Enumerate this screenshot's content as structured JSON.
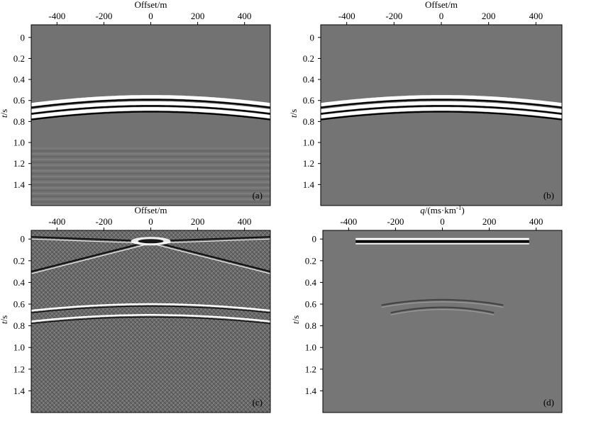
{
  "chart_data": [
    {
      "type": "heatmap",
      "panel_label": "(a)",
      "xlabel": "Offset/m",
      "ylabel_italic": "t",
      "ylabel_unit": "/s",
      "x_ticks": [
        "-400",
        "-200",
        "0",
        "200",
        "400"
      ],
      "x_tick_values": [
        -400,
        -200,
        0,
        200,
        400
      ],
      "y_ticks": [
        "0",
        "0.2",
        "0.4",
        "0.6",
        "0.8",
        "1.0",
        "1.2",
        "1.4"
      ],
      "y_tick_values": [
        0,
        0.2,
        0.4,
        0.6,
        0.8,
        1.0,
        1.2,
        1.4
      ],
      "xlim": [
        -510,
        510
      ],
      "ylim": [
        -0.12,
        1.6
      ],
      "grayscale": true,
      "events": [
        {
          "kind": "hyperbola",
          "t0": 0.565,
          "t_edge": 0.64
        },
        {
          "kind": "hyperbola",
          "t0": 0.625,
          "t_edge": 0.7
        },
        {
          "kind": "hyperbola",
          "t0": 0.68,
          "t_edge": 0.755
        }
      ],
      "background_noise": "horizontal banding below 1.0 s"
    },
    {
      "type": "heatmap",
      "panel_label": "(b)",
      "xlabel": "Offset/m",
      "ylabel_italic": "t",
      "ylabel_unit": "/s",
      "x_ticks": [
        "-400",
        "-200",
        "0",
        "200",
        "400"
      ],
      "x_tick_values": [
        -400,
        -200,
        0,
        200,
        400
      ],
      "y_ticks": [
        "0",
        "0.2",
        "0.4",
        "0.6",
        "0.8",
        "1.0",
        "1.2",
        "1.4"
      ],
      "y_tick_values": [
        0,
        0.2,
        0.4,
        0.6,
        0.8,
        1.0,
        1.2,
        1.4
      ],
      "xlim": [
        -510,
        510
      ],
      "ylim": [
        -0.12,
        1.6
      ],
      "grayscale": true,
      "events": [
        {
          "kind": "hyperbola",
          "t0": 0.565,
          "t_edge": 0.64
        },
        {
          "kind": "hyperbola",
          "t0": 0.625,
          "t_edge": 0.7
        },
        {
          "kind": "hyperbola",
          "t0": 0.68,
          "t_edge": 0.755
        }
      ],
      "background_noise": "clean"
    },
    {
      "type": "heatmap",
      "panel_label": "(c)",
      "xlabel": "Offset/m",
      "ylabel_italic": "t",
      "ylabel_unit": "/s",
      "x_ticks": [
        "-400",
        "-200",
        "0",
        "200",
        "400"
      ],
      "x_tick_values": [
        -400,
        -200,
        0,
        200,
        400
      ],
      "y_ticks": [
        "0",
        "0.2",
        "0.4",
        "0.6",
        "0.8",
        "1.0",
        "1.2",
        "1.4"
      ],
      "y_tick_values": [
        0,
        0.2,
        0.4,
        0.6,
        0.8,
        1.0,
        1.2,
        1.4
      ],
      "xlim": [
        -510,
        510
      ],
      "ylim": [
        -0.08,
        1.6
      ],
      "grayscale": true,
      "events": [
        {
          "kind": "linear",
          "t_at_zero": 0.02,
          "t_edge": 0.3
        },
        {
          "kind": "hyperbola",
          "t0": 0.6,
          "t_edge": 0.66
        },
        {
          "kind": "hyperbola",
          "t0": 0.7,
          "t_edge": 0.76
        }
      ],
      "background_noise": "strong crosshatched aliasing noise"
    },
    {
      "type": "heatmap",
      "panel_label": "(d)",
      "xlabel_italic": "q",
      "xlabel_unit": "/(ms·km",
      "xlabel_sup": "-1",
      "xlabel_close": ")",
      "ylabel_italic": "t",
      "ylabel_unit": "/s",
      "x_ticks": [
        "-400",
        "-200",
        "0",
        "200",
        "400"
      ],
      "x_tick_values": [
        -400,
        -200,
        0,
        200,
        400
      ],
      "y_ticks": [
        "0",
        "0.2",
        "0.4",
        "0.6",
        "0.8",
        "1.0",
        "1.2",
        "1.4"
      ],
      "y_tick_values": [
        0,
        0.2,
        0.4,
        0.6,
        0.8,
        1.0,
        1.2,
        1.4
      ],
      "xlim": [
        -510,
        510
      ],
      "ylim": [
        -0.08,
        1.6
      ],
      "grayscale": true,
      "events": [
        {
          "kind": "flat",
          "t": 0.01,
          "q_from": -370,
          "q_to": 370
        },
        {
          "kind": "focus",
          "t": 0.56,
          "q_from": -260,
          "q_to": 260
        },
        {
          "kind": "focus",
          "t": 0.63,
          "q_from": -220,
          "q_to": 220
        }
      ],
      "background_noise": "weak"
    }
  ]
}
